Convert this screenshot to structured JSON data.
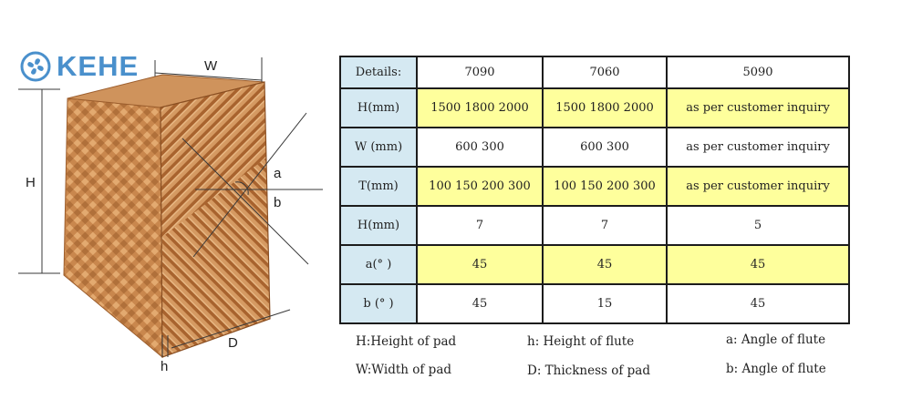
{
  "logo": {
    "text": "KEHE"
  },
  "diagram": {
    "labels": {
      "w": "W",
      "h_total": "H",
      "a": "a",
      "b": "b",
      "d": "D",
      "h_flute": "h"
    },
    "colors": {
      "pad_light": "#d9a06a",
      "pad_dark": "#a5602c",
      "line": "#3a3a3a"
    }
  },
  "table": {
    "header": [
      "Details:",
      "7090",
      "7060",
      "5090"
    ],
    "rows": [
      {
        "label": "H(mm)",
        "values": [
          "1500 1800 2000",
          "1500 1800 2000",
          "as per customer inquiry"
        ],
        "style": "yellow"
      },
      {
        "label": "W (mm)",
        "values": [
          "600 300",
          "600 300",
          "as per customer inquiry"
        ],
        "style": "white"
      },
      {
        "label": "T(mm)",
        "values": [
          "100 150 200 300",
          "100 150 200 300",
          "as per customer inquiry"
        ],
        "style": "yellow"
      },
      {
        "label": "H(mm)",
        "values": [
          "7",
          "7",
          "5"
        ],
        "style": "white"
      },
      {
        "label": "a(° )",
        "values": [
          "45",
          "45",
          "45"
        ],
        "style": "yellow"
      },
      {
        "label": "b (° )",
        "values": [
          "45",
          "15",
          "45"
        ],
        "style": "white"
      }
    ],
    "colors": {
      "yellow": "#feff9c",
      "label_bg": "#d5e9f2",
      "border": "#1c1c1c"
    }
  },
  "legend": {
    "h_height_pad": "H:Height of pad",
    "h_height_flute": "h: Height of flute",
    "a_angle": "a: Angle of flute",
    "w_width_pad": "W:Width of pad",
    "d_thickness": "D: Thickness of pad",
    "b_angle": "b: Angle of flute"
  }
}
